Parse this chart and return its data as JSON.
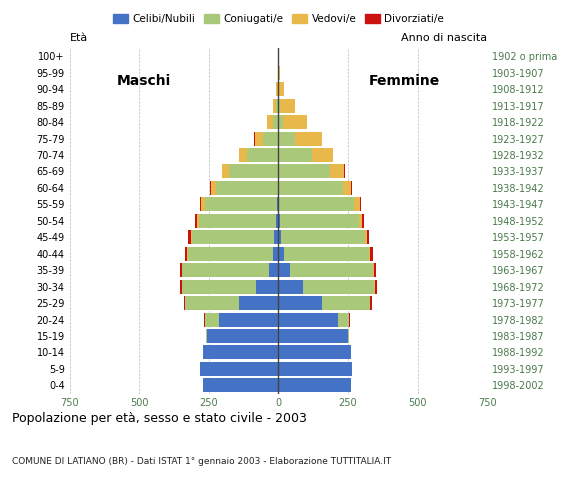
{
  "age_groups": [
    "0-4",
    "5-9",
    "10-14",
    "15-19",
    "20-24",
    "25-29",
    "30-34",
    "35-39",
    "40-44",
    "45-49",
    "50-54",
    "55-59",
    "60-64",
    "65-69",
    "70-74",
    "75-79",
    "80-84",
    "85-89",
    "90-94",
    "95-99",
    "100+"
  ],
  "birth_years": [
    "1998-2002",
    "1993-1997",
    "1988-1992",
    "1983-1987",
    "1978-1982",
    "1973-1977",
    "1968-1972",
    "1963-1967",
    "1958-1962",
    "1953-1957",
    "1948-1952",
    "1943-1947",
    "1938-1942",
    "1933-1937",
    "1928-1932",
    "1923-1927",
    "1918-1922",
    "1913-1917",
    "1908-1912",
    "1903-1907",
    "1902 o prima"
  ],
  "male": {
    "celibe": [
      270,
      280,
      270,
      255,
      215,
      140,
      80,
      35,
      20,
      15,
      10,
      5,
      3,
      2,
      1,
      0,
      0,
      0,
      0,
      0,
      0
    ],
    "coniugato": [
      0,
      0,
      0,
      5,
      50,
      195,
      265,
      310,
      305,
      295,
      275,
      260,
      220,
      175,
      110,
      55,
      20,
      8,
      2,
      1,
      0
    ],
    "vedovo": [
      0,
      0,
      0,
      0,
      0,
      0,
      0,
      0,
      2,
      5,
      8,
      12,
      18,
      25,
      30,
      30,
      20,
      12,
      5,
      2,
      0
    ],
    "divorziato": [
      0,
      0,
      0,
      0,
      2,
      5,
      8,
      10,
      10,
      8,
      6,
      5,
      3,
      2,
      1,
      1,
      0,
      0,
      0,
      0,
      0
    ]
  },
  "female": {
    "nubile": [
      260,
      265,
      260,
      250,
      215,
      155,
      90,
      40,
      20,
      10,
      5,
      3,
      2,
      1,
      0,
      0,
      0,
      0,
      0,
      0,
      0
    ],
    "coniugata": [
      0,
      0,
      0,
      5,
      40,
      175,
      255,
      300,
      305,
      300,
      285,
      270,
      230,
      185,
      120,
      60,
      18,
      5,
      1,
      0,
      0
    ],
    "vedova": [
      0,
      0,
      0,
      0,
      0,
      0,
      1,
      2,
      5,
      8,
      12,
      20,
      30,
      50,
      75,
      95,
      85,
      55,
      20,
      5,
      2
    ],
    "divorziata": [
      0,
      0,
      0,
      0,
      2,
      5,
      8,
      10,
      10,
      8,
      6,
      5,
      3,
      2,
      1,
      1,
      0,
      0,
      0,
      0,
      0
    ]
  },
  "colors": {
    "celibe": "#4472c4",
    "coniugato": "#aac87a",
    "vedovo": "#e8b84b",
    "divorziato": "#cc1111"
  },
  "xlim": 750,
  "title": "Popolazione per età, sesso e stato civile - 2003",
  "subtitle": "COMUNE DI LATIANO (BR) - Dati ISTAT 1° gennaio 2003 - Elaborazione TUTTITALIA.IT",
  "legend_labels": [
    "Celibi/Nubili",
    "Coniugati/e",
    "Vedovi/e",
    "Divorziati/e"
  ],
  "xlabel_left": "Maschi",
  "xlabel_right": "Femmine",
  "ylabel_left": "Età",
  "ylabel_right": "Anno di nascita",
  "bg_color": "#ffffff",
  "bar_height": 0.85,
  "grid_color": "#bbbbbb",
  "center_line_color": "#444444"
}
